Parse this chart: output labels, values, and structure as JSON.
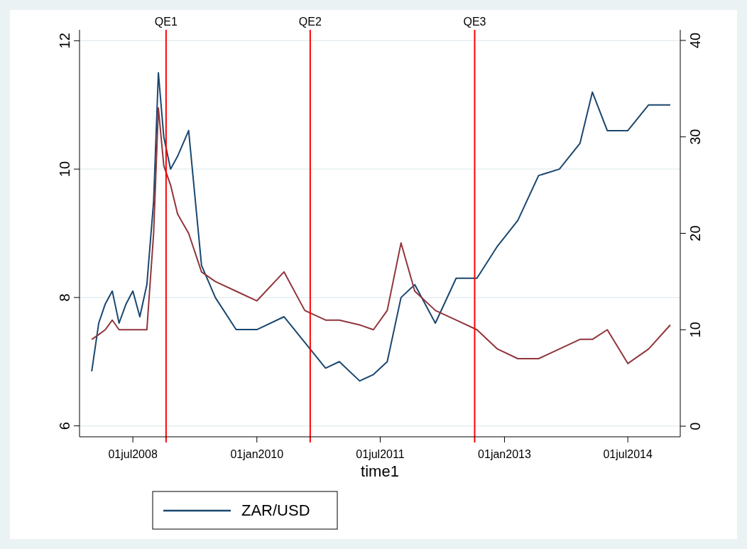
{
  "chart_data": {
    "type": "line",
    "xlabel": "time1",
    "x": [
      "2008-01-01",
      "2008-02-01",
      "2008-03-01",
      "2008-04-01",
      "2008-05-01",
      "2008-06-01",
      "2008-07-01",
      "2008-08-01",
      "2008-09-01",
      "2008-10-01",
      "2008-10-22",
      "2008-11-15",
      "2008-12-15",
      "2009-01-15",
      "2009-03-05",
      "2009-05-01",
      "2009-07-01",
      "2009-10-01",
      "2010-01-01",
      "2010-05-01",
      "2010-08-01",
      "2010-11-01",
      "2011-01-01",
      "2011-04-01",
      "2011-06-01",
      "2011-08-01",
      "2011-10-01",
      "2011-12-01",
      "2012-03-01",
      "2012-06-01",
      "2012-09-01",
      "2012-12-01",
      "2013-03-01",
      "2013-06-01",
      "2013-09-01",
      "2013-12-01",
      "2014-01-25",
      "2014-04-01",
      "2014-07-01",
      "2014-10-01",
      "2015-01-05"
    ],
    "series": [
      {
        "name": "ZAR/USD",
        "color": "#1a476f",
        "values": [
          6.85,
          7.6,
          7.9,
          8.1,
          7.6,
          7.9,
          8.1,
          7.7,
          8.2,
          9.5,
          11.5,
          10.5,
          10,
          10.2,
          10.6,
          8.5,
          8,
          7.5,
          7.5,
          7.7,
          7.3,
          6.9,
          7,
          6.7,
          6.8,
          7,
          8,
          8.2,
          7.6,
          8.3,
          8.3,
          8.8,
          9.2,
          9.9,
          10,
          10.4,
          11.2,
          10.6,
          10.6,
          11,
          11
        ]
      },
      {
        "color": "#90353b",
        "axis": "y2",
        "values": [
          9,
          9.5,
          10,
          11,
          10,
          10,
          10,
          10,
          10,
          20,
          33,
          27,
          25,
          22,
          20,
          16,
          15,
          14,
          13,
          16,
          12,
          11,
          11,
          10.5,
          10,
          12,
          19,
          14,
          12,
          11,
          10,
          8,
          7,
          7,
          8,
          9,
          9,
          10,
          6.5,
          8,
          10.5
        ]
      }
    ],
    "xlim": [
      "2007-11-08",
      "2015-02-18"
    ],
    "xticks": [
      {
        "value": "2008-07-01",
        "label": "01jul2008"
      },
      {
        "value": "2010-01-01",
        "label": "01jan2010"
      },
      {
        "value": "2011-07-01",
        "label": "01jul2011"
      },
      {
        "value": "2013-01-01",
        "label": "01jan2013"
      },
      {
        "value": "2014-07-01",
        "label": "01jul2014"
      }
    ],
    "ylim": [
      5.83,
      12.17
    ],
    "yticks": [
      6,
      8,
      10,
      12
    ],
    "y2lim": [
      -1.1,
      41.1
    ],
    "y2ticks": [
      0,
      10,
      20,
      30,
      40
    ],
    "ref_lines": [
      {
        "axis": "x",
        "value": "2008-11-25",
        "label": "QE1",
        "color": "#ff0000"
      },
      {
        "axis": "x",
        "value": "2010-08-25",
        "label": "QE2",
        "color": "#ff0000"
      },
      {
        "axis": "x",
        "value": "2012-08-22",
        "label": "QE3",
        "color": "#ff0000"
      }
    ],
    "grid": "y",
    "legend": "bottom",
    "line_style": "solid",
    "marker": "none"
  }
}
